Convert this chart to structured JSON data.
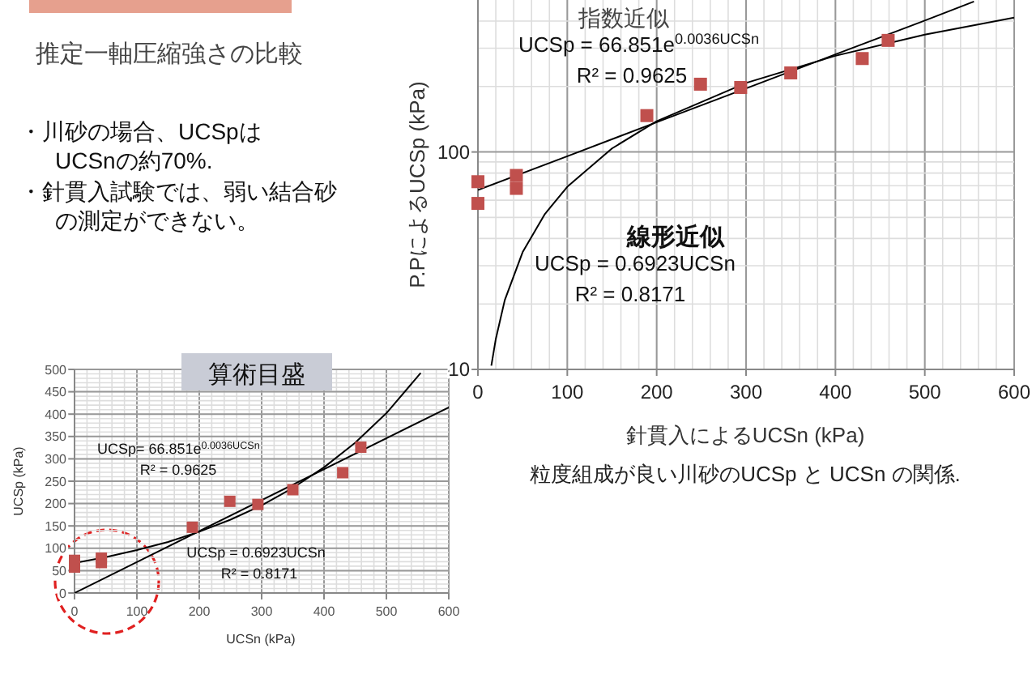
{
  "chart_data": [
    {
      "type": "other",
      "title": "推定一軸圧縮強さの比較",
      "annotations": [
        "・川砂の場合、UCSpは",
        "UCSnの約70%.",
        "・針貫入試験では、弱い結合砂",
        "の測定ができない。"
      ]
    },
    {
      "type": "scatter",
      "xlabel": "針貫入によるUCSn (kPa)",
      "ylabel": "P.PによるUCSp (kPa)",
      "log": "y",
      "xlim": [
        0,
        600
      ],
      "ylim": [
        10,
        500
      ],
      "xticks": [
        0,
        100,
        200,
        300,
        400,
        500,
        600
      ],
      "yticks": [
        10,
        100
      ],
      "grid": true,
      "series": [
        {
          "type": "scatter",
          "marker": "square",
          "color": "#c0504d",
          "x": [
            0,
            0,
            43,
            43,
            189,
            249,
            294,
            350,
            430,
            459
          ],
          "values": [
            73,
            58,
            78,
            68,
            147,
            205,
            198,
            231,
            269,
            326
          ]
        },
        {
          "type": "line",
          "color": "#000000",
          "x": [
            0,
            100,
            200,
            300,
            400,
            500,
            555
          ],
          "values": [
            66.9,
            95.6,
            137,
            196,
            281,
            402,
            492
          ]
        },
        {
          "type": "line",
          "color": "#000000",
          "x": [
            15,
            20,
            30,
            50,
            75,
            100,
            150,
            200,
            300,
            400,
            500,
            600
          ],
          "values": [
            10.4,
            13.8,
            20.8,
            34.6,
            51.9,
            69.2,
            103.8,
            138.5,
            207.7,
            276.9,
            346.2,
            415.4
          ]
        }
      ],
      "annotations": [
        "指数近似",
        "UCSp = 66.851e$^{0.0036UCSn}$",
        "R² = 0.9625",
        "線形近似",
        "UCSp = 0.6923UCSn",
        "R² = 0.8171",
        "粒度組成が良い川砂のUCSp と UCSn の関係."
      ]
    },
    {
      "type": "scatter",
      "title": "算術目盛",
      "xlabel": "UCSn (kPa)",
      "ylabel": "UCSp  (kPa)",
      "xlim": [
        0,
        600
      ],
      "ylim": [
        0,
        500
      ],
      "xticks": [
        0,
        100,
        200,
        300,
        400,
        500,
        600
      ],
      "yticks": [
        0,
        50,
        100,
        150,
        200,
        250,
        300,
        350,
        400,
        450,
        500
      ],
      "grid": true,
      "series": [
        {
          "type": "scatter",
          "marker": "square",
          "color": "#c0504d",
          "x": [
            0,
            0,
            43,
            43,
            189,
            249,
            294,
            350,
            430,
            459
          ],
          "values": [
            73,
            58,
            78,
            68,
            147,
            205,
            198,
            231,
            269,
            326
          ]
        },
        {
          "type": "line",
          "color": "#000000",
          "x": [
            0,
            50,
            100,
            150,
            200,
            250,
            300,
            350,
            400,
            450,
            500,
            555
          ],
          "values": [
            67,
            80,
            96,
            114,
            137,
            164,
            196,
            235,
            281,
            336,
            402,
            492
          ]
        },
        {
          "type": "line",
          "color": "#000000",
          "x": [
            0,
            600
          ],
          "values": [
            0,
            415
          ]
        }
      ],
      "annotations": [
        "UCSp= 66.851e$^{0.0036UCSn}$",
        "R² = 0.9625",
        "UCSp = 0.6923UCSn",
        "R² = 0.8171"
      ]
    }
  ]
}
